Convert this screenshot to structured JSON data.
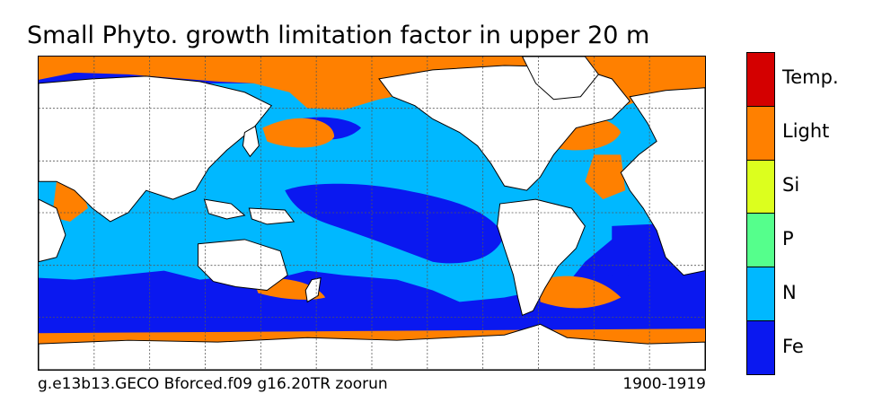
{
  "title": "Small Phyto. growth limitation factor in upper 20 m",
  "footer": {
    "run": "g.e13b13.GECO Bforced.f09 g16.20TR zoorun",
    "period": "1900-1919"
  },
  "legend": [
    {
      "label": "Temp.",
      "color": "#d40000"
    },
    {
      "label": "Light",
      "color": "#ff8000"
    },
    {
      "label": "Si",
      "color": "#dcff1e"
    },
    {
      "label": "P",
      "color": "#55ff8c"
    },
    {
      "label": "N",
      "color": "#00b8ff"
    },
    {
      "label": "Fe",
      "color": "#0a18f0"
    }
  ],
  "colors": {
    "land": "#ffffff",
    "coast": "#000000",
    "grid": "#555555"
  }
}
